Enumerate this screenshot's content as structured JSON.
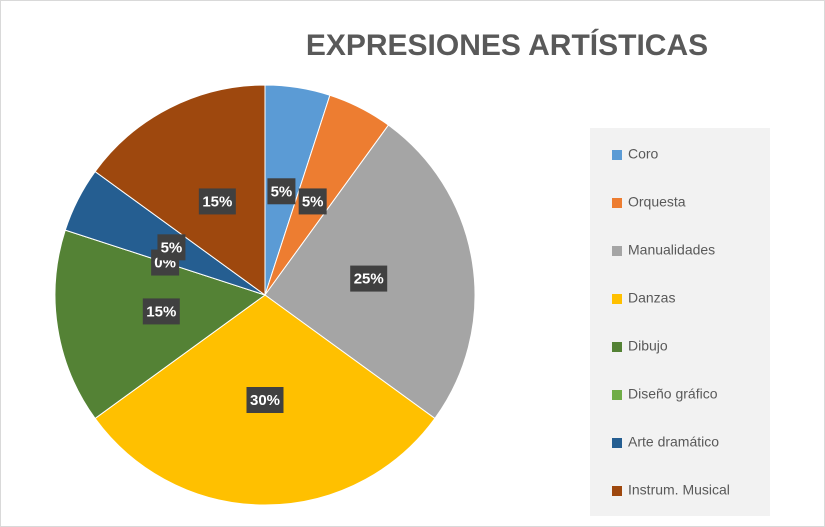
{
  "chart_data": {
    "type": "pie",
    "title": "EXPRESIONES ARTÍSTICAS",
    "categories": [
      "Coro",
      "Orquesta",
      "Manualidades",
      "Danzas",
      "Dibujo",
      "Diseño gráfico",
      "Arte dramático",
      "Instrum. Musical"
    ],
    "values": [
      5,
      5,
      25,
      30,
      15,
      0,
      5,
      15
    ],
    "value_labels": [
      "5%",
      "5%",
      "25%",
      "30%",
      "15%",
      "0%",
      "5%",
      "15%"
    ],
    "colors": [
      "#5b9bd5",
      "#ed7d31",
      "#a5a5a5",
      "#ffc000",
      "#548235",
      "#70ad47",
      "#255e91",
      "#9e480e"
    ],
    "legend": "right"
  }
}
